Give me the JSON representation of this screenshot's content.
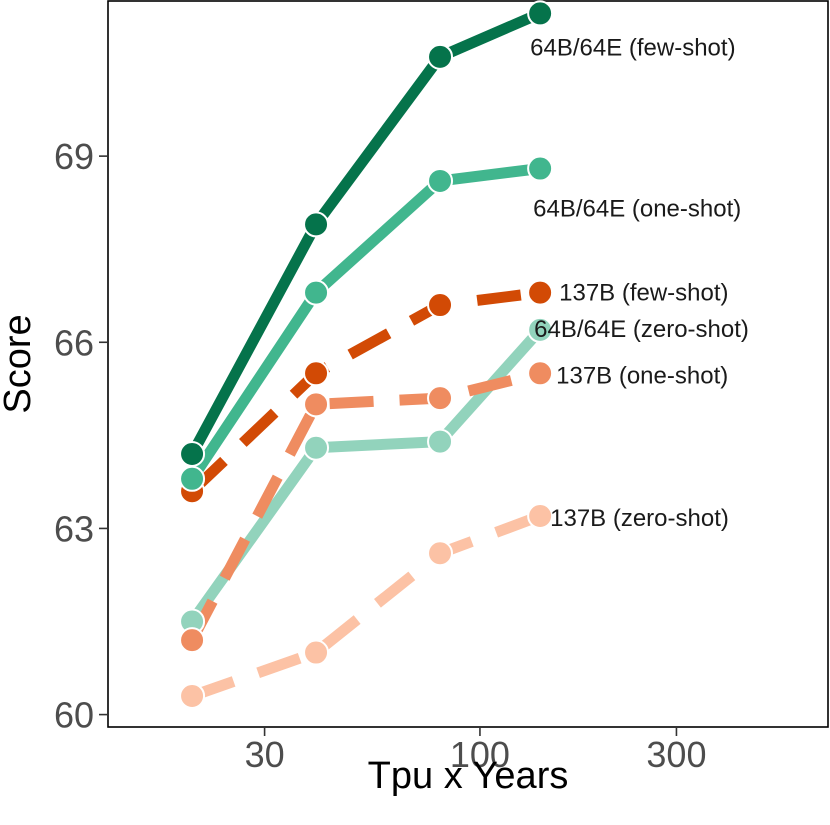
{
  "chart_data": {
    "type": "line",
    "title": "",
    "xlabel": "Tpu x Years",
    "ylabel": "Score",
    "x_scale": "log10",
    "xlim": [
      12.5,
      700
    ],
    "ylim": [
      59.8,
      71.5
    ],
    "x_ticks": [
      30,
      100,
      300
    ],
    "x_tick_labels": [
      "30",
      "100",
      "300"
    ],
    "y_ticks": [
      60,
      63,
      66,
      69
    ],
    "y_tick_labels": [
      "60",
      "63",
      "66",
      "69"
    ],
    "grid": false,
    "legend": "none (direct labels at line ends)",
    "series": [
      {
        "name": "64B/64E (zero-shot)",
        "color": "#92d3bc",
        "dash": "solid",
        "x": [
          20,
          40,
          80,
          140
        ],
        "y": [
          61.5,
          64.3,
          64.4,
          66.2
        ]
      },
      {
        "name": "137B (zero-shot)",
        "color": "#fcc2a5",
        "dash": "dashed",
        "x": [
          20,
          40,
          80,
          140
        ],
        "y": [
          60.3,
          61.0,
          62.6,
          63.2
        ]
      },
      {
        "name": "137B (one-shot)",
        "color": "#ef8c60",
        "dash": "dashed",
        "x": [
          20,
          40,
          80,
          140
        ],
        "y": [
          61.2,
          65.0,
          65.1,
          65.5
        ]
      },
      {
        "name": "137B (few-shot)",
        "color": "#d24a05",
        "dash": "dashed",
        "x": [
          20,
          40,
          80,
          140
        ],
        "y": [
          63.6,
          65.5,
          66.6,
          66.8
        ]
      },
      {
        "name": "64B/64E (one-shot)",
        "color": "#41b68e",
        "dash": "solid",
        "x": [
          20,
          40,
          80,
          140
        ],
        "y": [
          63.8,
          66.8,
          68.6,
          68.8
        ]
      },
      {
        "name": "64B/64E (few-shot)",
        "color": "#05734b",
        "dash": "solid",
        "x": [
          20,
          40,
          80,
          140
        ],
        "y": [
          64.2,
          67.9,
          70.6,
          71.3
        ]
      }
    ]
  }
}
